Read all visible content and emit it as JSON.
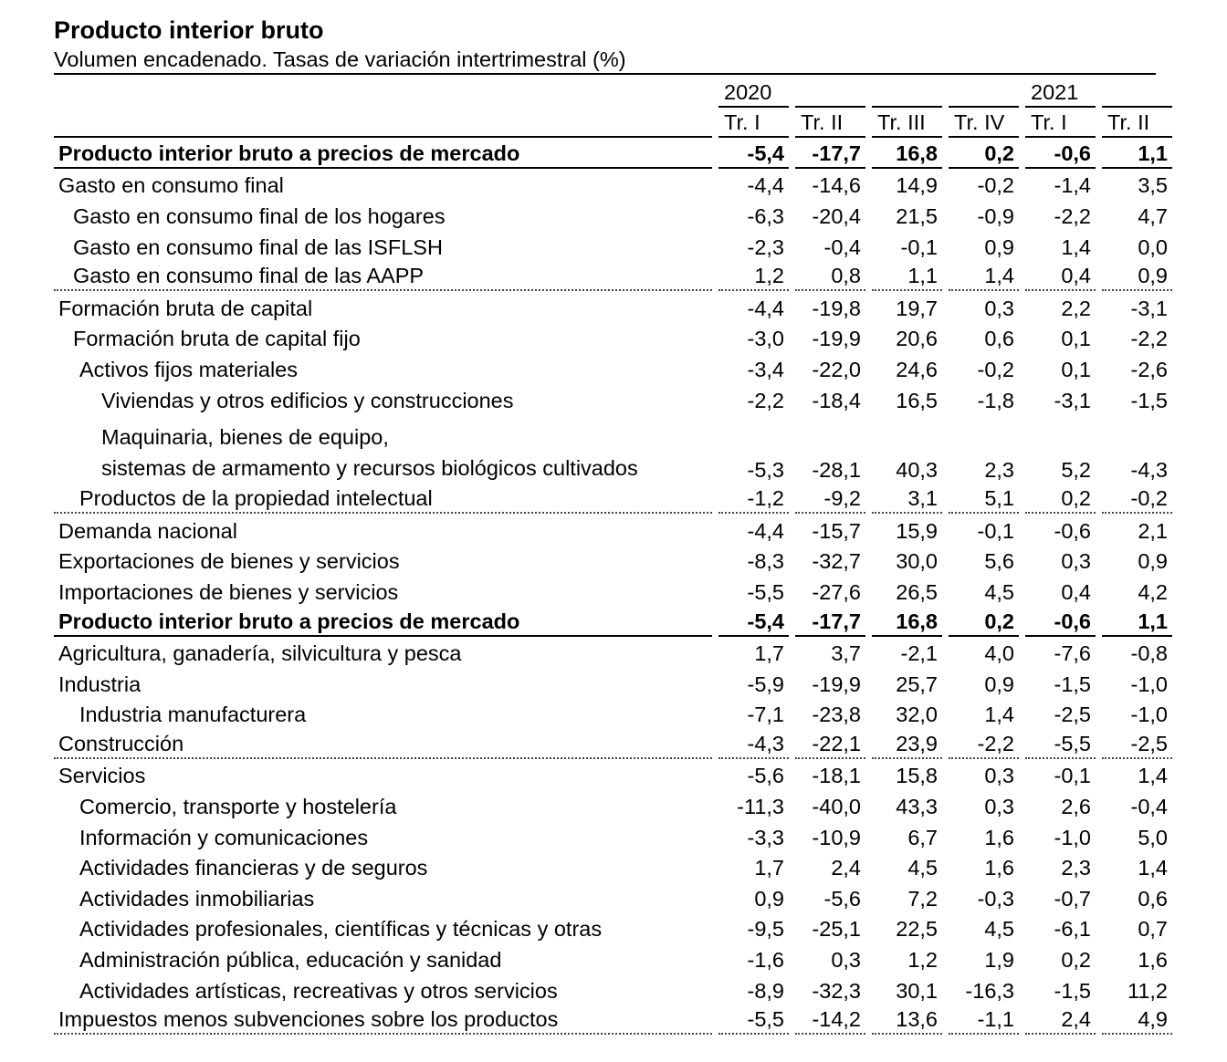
{
  "title": "Producto interior bruto",
  "subtitle": "Volumen encadenado. Tasas de variación intertrimestral (%)",
  "years": [
    "2020",
    "",
    "",
    "",
    "2021",
    ""
  ],
  "quarters": [
    "Tr. I",
    "Tr. II",
    "Tr. III",
    "Tr. IV",
    "Tr. I",
    "Tr. II"
  ],
  "rows": [
    {
      "label": "Producto interior bruto a precios de mercado",
      "values": [
        "-5,4",
        "-17,7",
        "16,8",
        "0,2",
        "-0,6",
        "1,1"
      ]
    },
    {
      "label": "Gasto en consumo final",
      "values": [
        "-4,4",
        "-14,6",
        "14,9",
        "-0,2",
        "-1,4",
        "3,5"
      ]
    },
    {
      "label": "Gasto en consumo final de los hogares",
      "values": [
        "-6,3",
        "-20,4",
        "21,5",
        "-0,9",
        "-2,2",
        "4,7"
      ]
    },
    {
      "label": "Gasto en consumo final de las ISFLSH",
      "values": [
        "-2,3",
        "-0,4",
        "-0,1",
        "0,9",
        "1,4",
        "0,0"
      ]
    },
    {
      "label": "Gasto en consumo final de las AAPP",
      "values": [
        "1,2",
        "0,8",
        "1,1",
        "1,4",
        "0,4",
        "0,9"
      ]
    },
    {
      "label": "Formación bruta de capital",
      "values": [
        "-4,4",
        "-19,8",
        "19,7",
        "0,3",
        "2,2",
        "-3,1"
      ]
    },
    {
      "label": "Formación bruta de capital fijo",
      "values": [
        "-3,0",
        "-19,9",
        "20,6",
        "0,6",
        "0,1",
        "-2,2"
      ]
    },
    {
      "label": "Activos fijos  materiales",
      "values": [
        "-3,4",
        "-22,0",
        "24,6",
        "-0,2",
        "0,1",
        "-2,6"
      ]
    },
    {
      "label": "Viviendas y otros edificios y construcciones",
      "values": [
        "-2,2",
        "-18,4",
        "16,5",
        "-1,8",
        "-3,1",
        "-1,5"
      ]
    },
    {
      "label": "Maquinaria, bienes de equipo,",
      "label2": "sistemas de armamento y recursos biológicos cultivados",
      "values": [
        "-5,3",
        "-28,1",
        "40,3",
        "2,3",
        "5,2",
        "-4,3"
      ]
    },
    {
      "label": "Productos de la propiedad intelectual",
      "values": [
        "-1,2",
        "-9,2",
        "3,1",
        "5,1",
        "0,2",
        "-0,2"
      ]
    },
    {
      "label": "Demanda nacional",
      "values": [
        "-4,4",
        "-15,7",
        "15,9",
        "-0,1",
        "-0,6",
        "2,1"
      ]
    },
    {
      "label": "Exportaciones de bienes y servicios",
      "values": [
        "-8,3",
        "-32,7",
        "30,0",
        "5,6",
        "0,3",
        "0,9"
      ]
    },
    {
      "label": "Importaciones de bienes y servicios",
      "values": [
        "-5,5",
        "-27,6",
        "26,5",
        "4,5",
        "0,4",
        "4,2"
      ]
    },
    {
      "label": "Producto interior bruto a precios de mercado",
      "values": [
        "-5,4",
        "-17,7",
        "16,8",
        "0,2",
        "-0,6",
        "1,1"
      ]
    },
    {
      "label": "Agricultura, ganadería, silvicultura y pesca",
      "values": [
        "1,7",
        "3,7",
        "-2,1",
        "4,0",
        "-7,6",
        "-0,8"
      ]
    },
    {
      "label": "Industria",
      "values": [
        "-5,9",
        "-19,9",
        "25,7",
        "0,9",
        "-1,5",
        "-1,0"
      ]
    },
    {
      "label": "Industria manufacturera",
      "values": [
        "-7,1",
        "-23,8",
        "32,0",
        "1,4",
        "-2,5",
        "-1,0"
      ]
    },
    {
      "label": "Construcción",
      "values": [
        "-4,3",
        "-22,1",
        "23,9",
        "-2,2",
        "-5,5",
        "-2,5"
      ]
    },
    {
      "label": "Servicios",
      "values": [
        "-5,6",
        "-18,1",
        "15,8",
        "0,3",
        "-0,1",
        "1,4"
      ]
    },
    {
      "label": "Comercio, transporte y hostelería",
      "values": [
        "-11,3",
        "-40,0",
        "43,3",
        "0,3",
        "2,6",
        "-0,4"
      ]
    },
    {
      "label": "Información y comunicaciones",
      "values": [
        "-3,3",
        "-10,9",
        "6,7",
        "1,6",
        "-1,0",
        "5,0"
      ]
    },
    {
      "label": "Actividades financieras y de seguros",
      "values": [
        "1,7",
        "2,4",
        "4,5",
        "1,6",
        "2,3",
        "1,4"
      ]
    },
    {
      "label": "Actividades inmobiliarias",
      "values": [
        "0,9",
        "-5,6",
        "7,2",
        "-0,3",
        "-0,7",
        "0,6"
      ]
    },
    {
      "label": "Actividades profesionales, científicas y técnicas y otras",
      "values": [
        "-9,5",
        "-25,1",
        "22,5",
        "4,5",
        "-6,1",
        "0,7"
      ]
    },
    {
      "label": "Administración pública, educación y sanidad",
      "values": [
        "-1,6",
        "0,3",
        "1,2",
        "1,9",
        "0,2",
        "1,6"
      ]
    },
    {
      "label": "Actividades artísticas, recreativas y otros servicios",
      "values": [
        "-8,9",
        "-32,3",
        "30,1",
        "-16,3",
        "-1,5",
        "11,2"
      ]
    },
    {
      "label": "Impuestos menos subvenciones sobre los productos",
      "values": [
        "-5,5",
        "-14,2",
        "13,6",
        "-1,1",
        "2,4",
        "4,9"
      ]
    }
  ]
}
